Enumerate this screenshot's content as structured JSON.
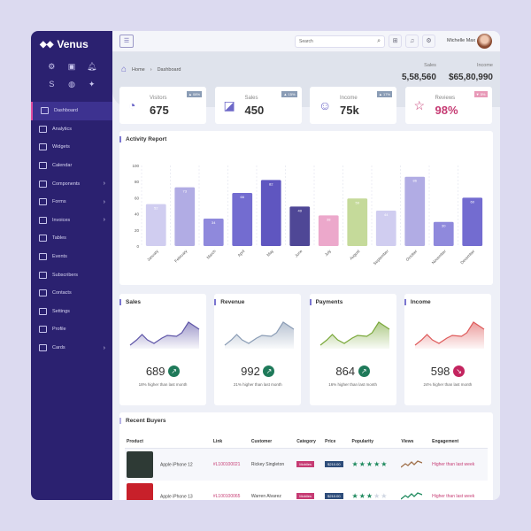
{
  "app": {
    "name": "Venus"
  },
  "sidebar": {
    "items": [
      {
        "label": "Dashboard",
        "active": true
      },
      {
        "label": "Analytics"
      },
      {
        "label": "Widgets"
      },
      {
        "label": "Calendar"
      },
      {
        "label": "Components",
        "sub": true
      },
      {
        "label": "Forms",
        "sub": true
      },
      {
        "label": "Invoices",
        "sub": true
      },
      {
        "label": "Tables"
      },
      {
        "label": "Events"
      },
      {
        "label": "Subscribers"
      },
      {
        "label": "Contacts"
      },
      {
        "label": "Settings"
      },
      {
        "label": "Profile"
      },
      {
        "label": "Cards",
        "sub": true
      }
    ]
  },
  "header": {
    "search_placeholder": "Search",
    "user": "Michelle Max"
  },
  "breadcrumb": {
    "home": "Home",
    "current": "Dashboard"
  },
  "totals": {
    "sales_label": "Sales",
    "sales": "5,58,560",
    "income_label": "Income",
    "income": "$65,80,990"
  },
  "stats": [
    {
      "label": "Visitors",
      "value": "675",
      "badge": "▲ 08%"
    },
    {
      "label": "Sales",
      "value": "450",
      "badge": "▲ 15%"
    },
    {
      "label": "Income",
      "value": "75k",
      "badge": "▲ 17%"
    },
    {
      "label": "Reviews",
      "value": "98%",
      "badge": "▼ 5%"
    }
  ],
  "chart_data": {
    "type": "bar",
    "title": "Activity Report",
    "categories": [
      "January",
      "February",
      "March",
      "April",
      "May",
      "June",
      "July",
      "August",
      "September",
      "October",
      "November",
      "December"
    ],
    "values": [
      52,
      73,
      34,
      66,
      82,
      49,
      38,
      59,
      44,
      86,
      30,
      60
    ],
    "colors": [
      "#d0cdf0",
      "#b1acE4",
      "#8f89dc",
      "#736cd0",
      "#5f56c0",
      "#4f4796",
      "#eca8cb",
      "#c5da9a",
      "#d0cdf0",
      "#b1ace4",
      "#8f89dc",
      "#736cd0"
    ],
    "ylim": [
      0,
      100
    ],
    "yticks": [
      0,
      20,
      40,
      60,
      80,
      100
    ]
  },
  "minis": [
    {
      "title": "Sales",
      "value": "689",
      "trend": "up",
      "note": "18% higher than last month",
      "color": "#5f56a8"
    },
    {
      "title": "Revenue",
      "value": "992",
      "trend": "up",
      "note": "21% higher than last month",
      "color": "#8a9cb5"
    },
    {
      "title": "Payments",
      "value": "864",
      "trend": "up",
      "note": "16% higher than last month",
      "color": "#7aa83a"
    },
    {
      "title": "Income",
      "value": "598",
      "trend": "down",
      "note": "24% higher than last month",
      "color": "#de5a5a"
    }
  ],
  "buyers": {
    "title": "Recent Buyers",
    "columns": [
      "Product",
      "Link",
      "Customer",
      "Category",
      "Price",
      "Popularity",
      "Views",
      "Engagement"
    ],
    "rows": [
      {
        "product": "Apple iPhone 12",
        "link": "#L100100021",
        "customer": "Rickey Singleton",
        "category": "Mobiles",
        "price": "$210.00",
        "stars": 5,
        "engagement": "Higher than last week"
      },
      {
        "product": "Apple iPhone 13",
        "link": "#L100100065",
        "customer": "Warren Alvarez",
        "category": "Mobiles",
        "price": "$210.00",
        "stars": 3,
        "engagement": "Higher than last week"
      }
    ]
  }
}
